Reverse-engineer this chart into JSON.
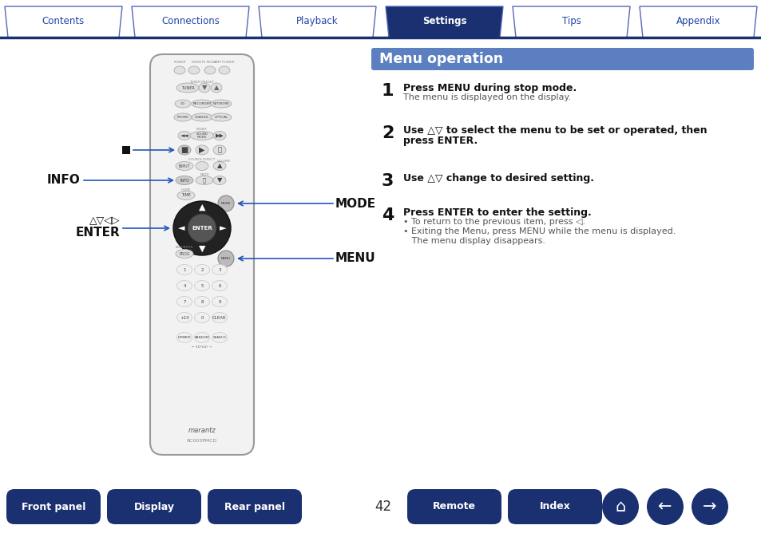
{
  "title": "Menu operation",
  "title_bg": "#5b7fc0",
  "title_fg": "#ffffff",
  "page_bg": "#ffffff",
  "tab_labels": [
    "Contents",
    "Connections",
    "Playback",
    "Settings",
    "Tips",
    "Appendix"
  ],
  "active_tab": 3,
  "tab_active_bg": "#1a3070",
  "tab_active_fg": "#ffffff",
  "tab_inactive_bg": "#ffffff",
  "tab_inactive_fg": "#2244aa",
  "tab_border": "#5566bb",
  "header_line": "#1a3070",
  "step1_bold": "Press MENU during stop mode.",
  "step1_normal": "The menu is displayed on the display.",
  "step2_bold": "Use △▽ to select the menu to be set or operated, then",
  "step2_bold2": "press ENTER.",
  "step3_bold": "Use △▽ change to desired setting.",
  "step4_bold": "Press ENTER to enter the setting.",
  "step4_note1": "• To return to the previous item, press ◁.",
  "step4_note2": "• Exiting the Menu, press MENU while the menu is displayed.",
  "step4_note3": "   The menu display disappears.",
  "bottom_buttons": [
    "Front panel",
    "Display",
    "Rear panel",
    "Remote",
    "Index"
  ],
  "page_number": "42",
  "btn_bg": "#1a3070",
  "btn_fg": "#ffffff",
  "remote_body_color": "#f2f2f2",
  "remote_body_border": "#999999",
  "remote_dark": "#333333",
  "remote_mid": "#888888",
  "remote_light": "#dddddd"
}
